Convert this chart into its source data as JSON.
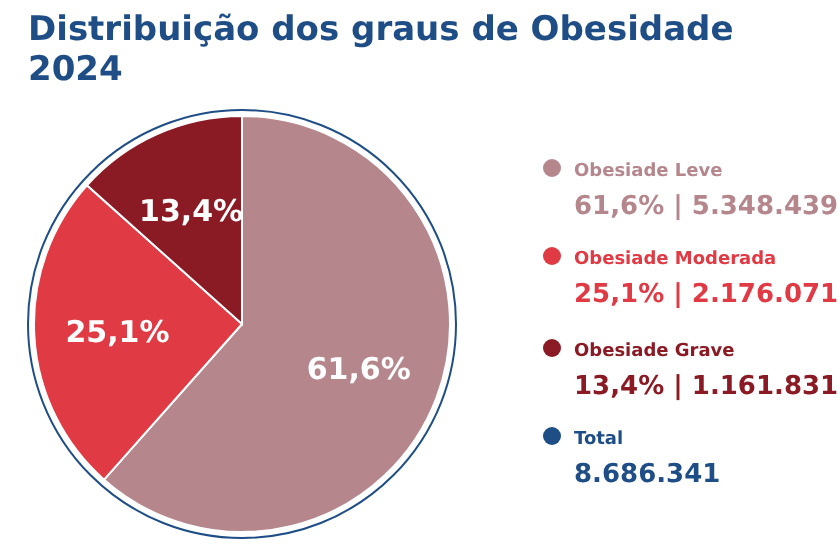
{
  "chart_data": {
    "type": "pie",
    "title": "Distribuição dos graus  de Obesidade 2024",
    "categories": [
      "Obesiade Leve",
      "Obesiade Moderada",
      "Obesiade Grave"
    ],
    "values": [
      61.6,
      25.1,
      13.4
    ],
    "colors": [
      "#b5878d",
      "#e03a44",
      "#8a1a23"
    ],
    "value_labels": [
      "61,6%",
      "25,1%",
      "13,4%"
    ],
    "legend": "right",
    "annotations": [
      "61,6% | 5.348.439",
      "25,1% | 2.176.071",
      "13,4% | 1.161.831",
      "Total",
      "8.686.341"
    ]
  }
}
